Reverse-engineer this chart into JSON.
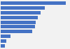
{
  "values": [
    22000,
    14800,
    13400,
    12400,
    11900,
    11500,
    10500,
    3200,
    1900,
    1400
  ],
  "bar_color": "#4472c4",
  "background_color": "#f2f2f2",
  "plot_bg_color": "#f2f2f2",
  "figsize": [
    1.0,
    0.71
  ],
  "dpi": 100,
  "bar_height": 0.72
}
